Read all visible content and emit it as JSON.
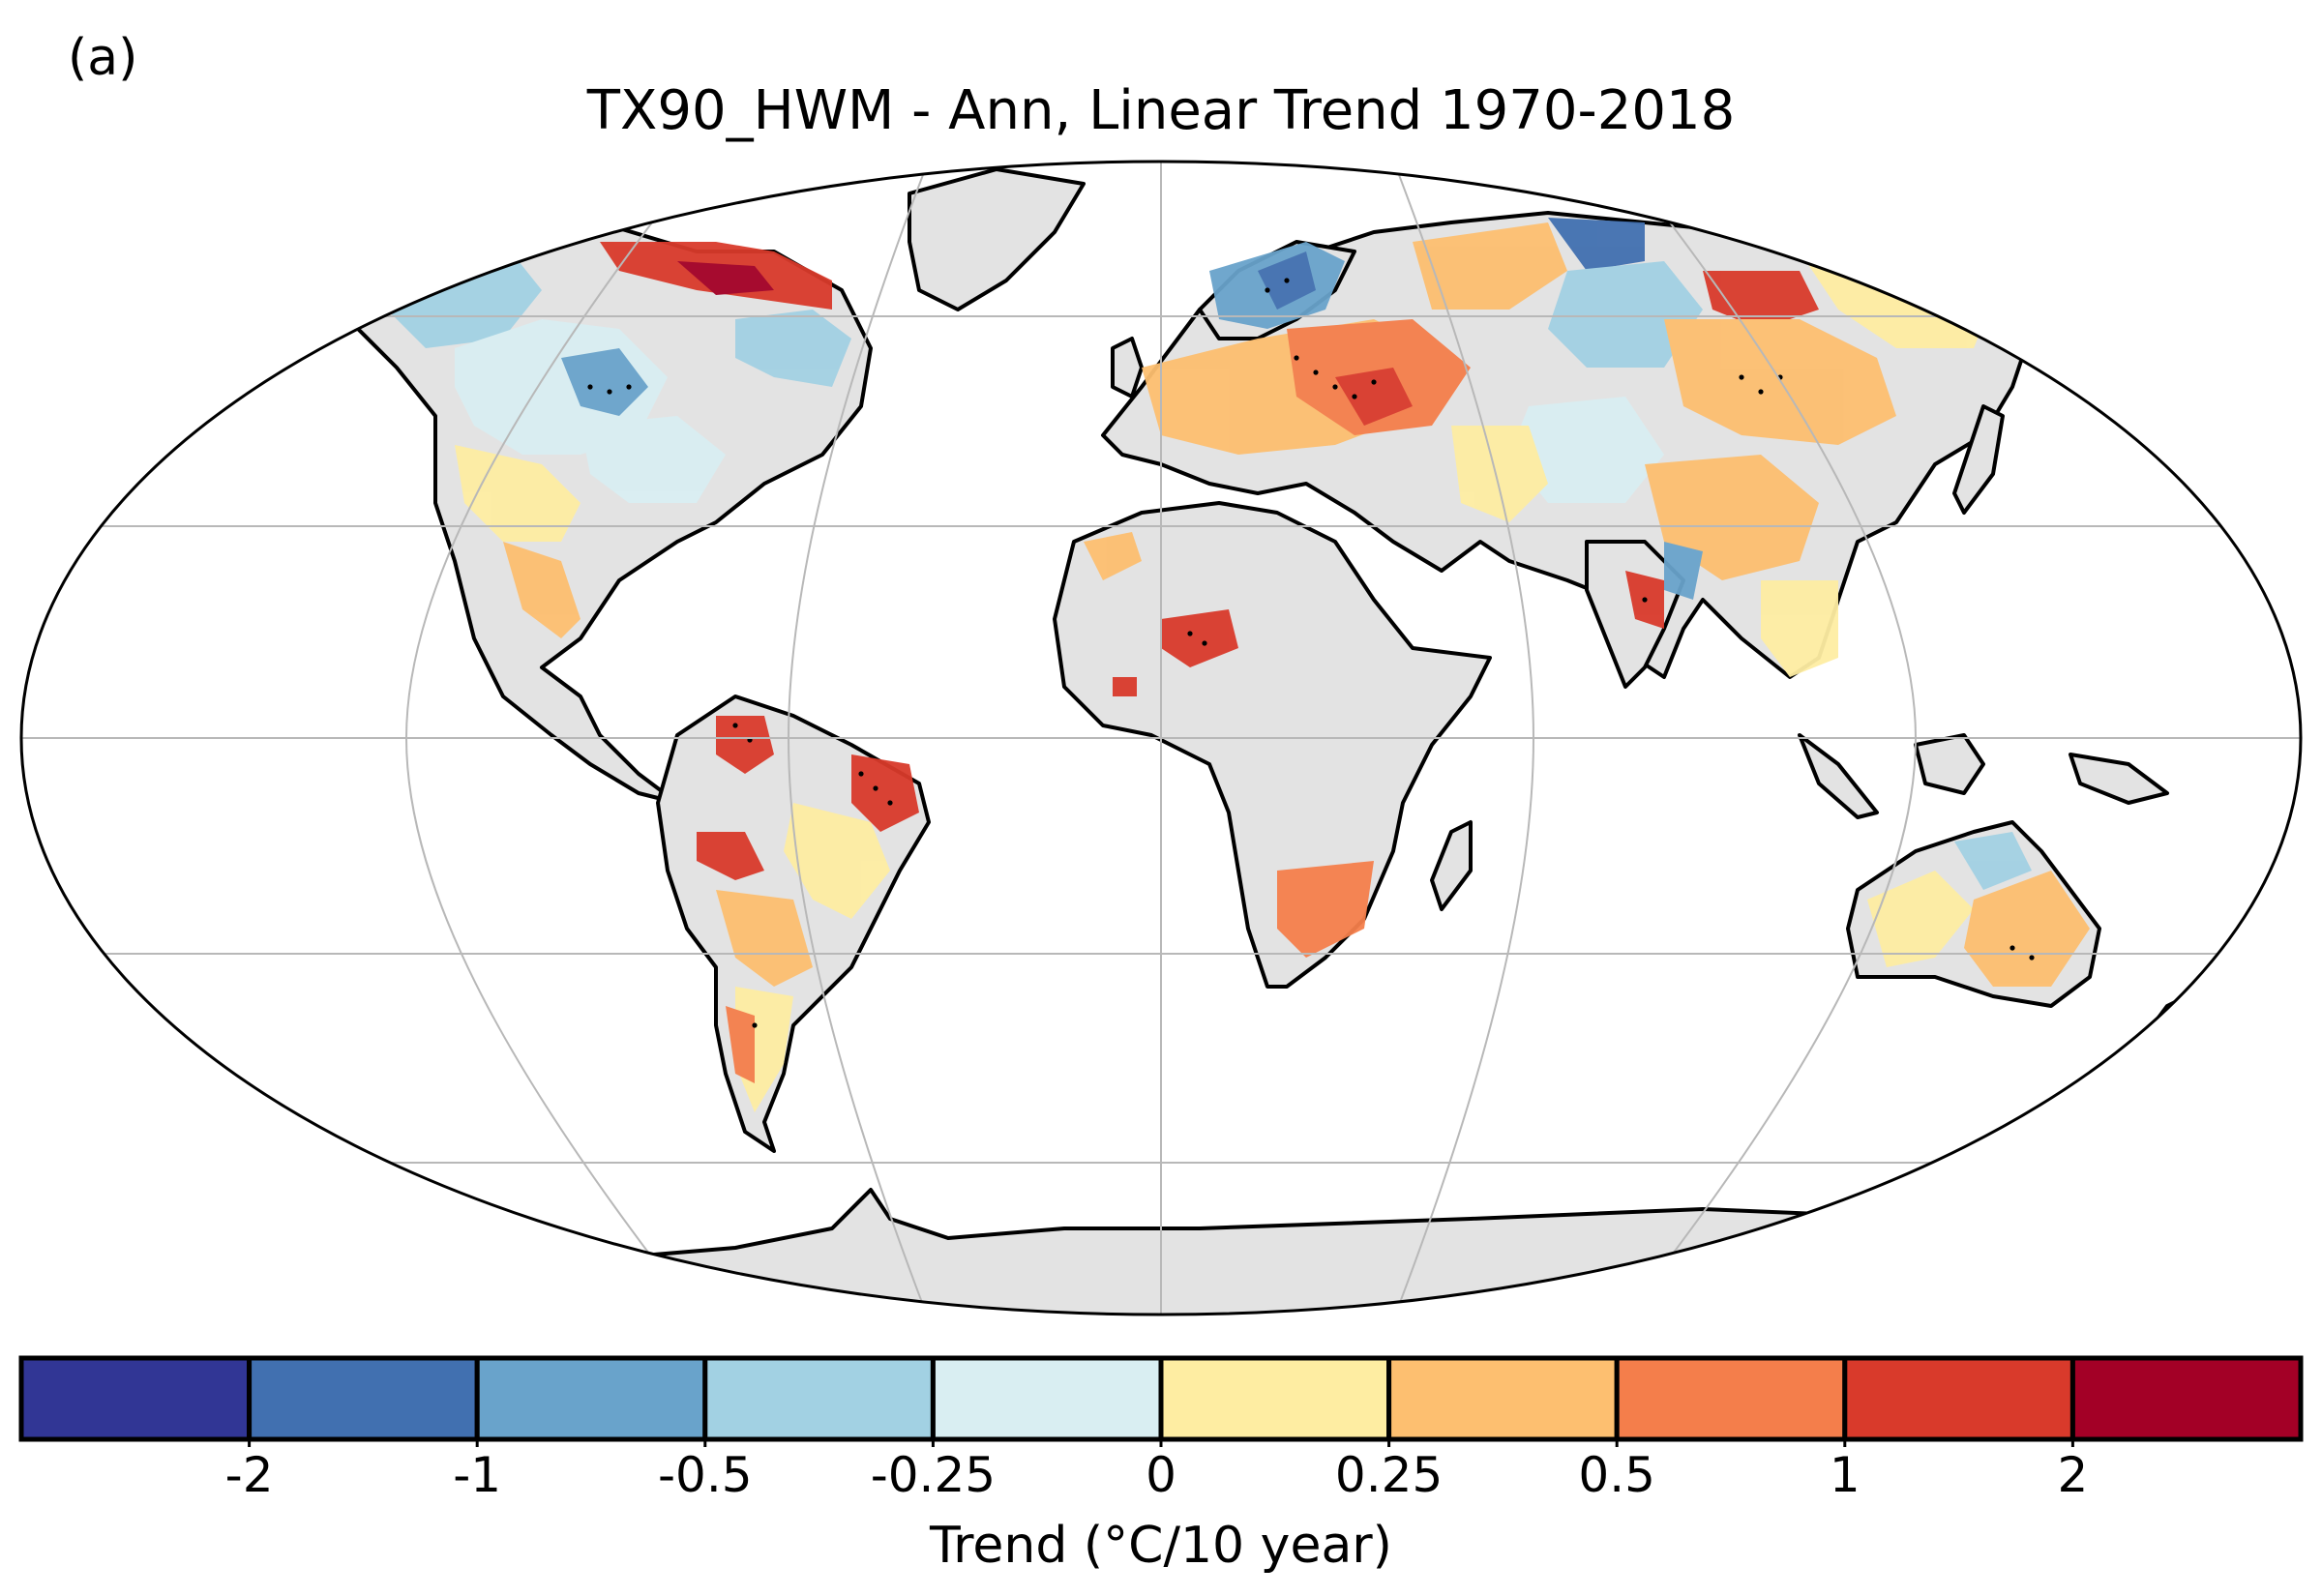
{
  "panel_label": "(a)",
  "title": "TX90_HWM - Ann, Linear Trend 1970-2018",
  "colorbar": {
    "label": "Trend (°C/10 year)",
    "bins": [
      {
        "color": "#313695"
      },
      {
        "color": "#4170b0"
      },
      {
        "color": "#69a3cb"
      },
      {
        "color": "#a2d1e3"
      },
      {
        "color": "#d9eef2"
      },
      {
        "color": "#feeda2"
      },
      {
        "color": "#fdbf70"
      },
      {
        "color": "#f47e4b"
      },
      {
        "color": "#d93a2b"
      },
      {
        "color": "#a30026"
      }
    ],
    "ticks": [
      "-2",
      "-1",
      "-0.5",
      "-0.25",
      "0",
      "0.25",
      "0.5",
      "1",
      "2"
    ]
  },
  "map": {
    "projection": "Robinson",
    "no_data_color": "#e3e3e3",
    "gridlines": true,
    "stippling": "significant trends marked with dots"
  }
}
